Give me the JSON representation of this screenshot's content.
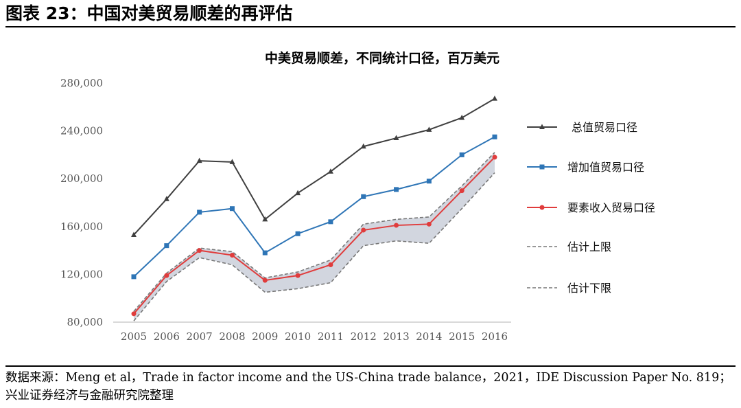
{
  "header": {
    "title": "图表 23：中国对美贸易顺差的再评估"
  },
  "source": {
    "text": "数据来源：Meng et al，Trade in factor income and the US-China trade balance，2021，IDE Discussion Paper No. 819；兴业证券经济与金融研究院整理"
  },
  "chart_data": {
    "type": "line",
    "title": "中美贸易顺差，不同统计口径，百万美元",
    "categories": [
      "2005",
      "2006",
      "2007",
      "2008",
      "2009",
      "2010",
      "2011",
      "2012",
      "2013",
      "2014",
      "2015",
      "2016"
    ],
    "yticks": [
      "80,000",
      "120,000",
      "160,000",
      "200,000",
      "240,000",
      "280,000"
    ],
    "ytick_values": [
      80000,
      120000,
      160000,
      200000,
      240000,
      280000
    ],
    "ylim": [
      80000,
      280000
    ],
    "legend_position": "right",
    "series": [
      {
        "name": "总值贸易口径",
        "color": "#3f3f3f",
        "marker": "triangle",
        "style": "solid",
        "values": [
          153000,
          183000,
          215000,
          214000,
          166000,
          188000,
          206000,
          227000,
          234000,
          241000,
          251000,
          267000
        ]
      },
      {
        "name": "增加值贸易口径",
        "color": "#2e75b6",
        "marker": "square",
        "style": "solid",
        "values": [
          118000,
          144000,
          172000,
          175000,
          138000,
          154000,
          164000,
          185000,
          191000,
          198000,
          220000,
          235000
        ]
      },
      {
        "name": "要素收入贸易口径",
        "color": "#e03c3c",
        "marker": "circle",
        "style": "solid",
        "values": [
          87000,
          119000,
          140000,
          136000,
          115000,
          119000,
          128000,
          157000,
          161000,
          162000,
          190000,
          218000
        ]
      },
      {
        "name": "估计上限",
        "color": "#777777",
        "marker": "none",
        "style": "dashed",
        "values": [
          89000,
          121000,
          142000,
          139000,
          117000,
          122000,
          132000,
          162000,
          166000,
          168000,
          194000,
          222000
        ]
      },
      {
        "name": "估计下限",
        "color": "#777777",
        "marker": "none",
        "style": "dashed",
        "values": [
          81000,
          114000,
          134000,
          128000,
          105000,
          108000,
          113000,
          144000,
          148000,
          146000,
          175000,
          205000
        ]
      }
    ]
  }
}
